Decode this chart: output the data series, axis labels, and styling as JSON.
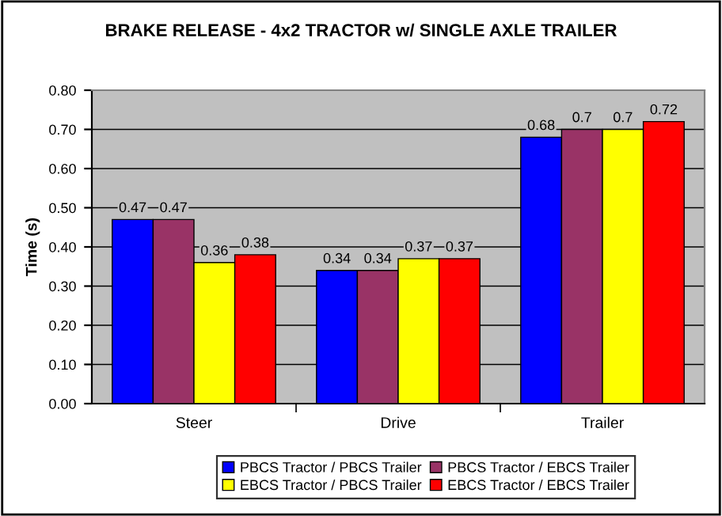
{
  "chart_data": {
    "type": "bar",
    "title": "BRAKE RELEASE - 4x2 TRACTOR w/ SINGLE AXLE TRAILER",
    "ylabel": "Time (s)",
    "categories": [
      "Steer",
      "Drive",
      "Trailer"
    ],
    "series": [
      {
        "name": "PBCS Tractor / PBCS Trailer",
        "color": "#0000ff",
        "values": [
          0.47,
          0.34,
          0.68
        ]
      },
      {
        "name": "PBCS Tractor / EBCS Trailer",
        "color": "#993366",
        "values": [
          0.47,
          0.34,
          0.7
        ]
      },
      {
        "name": "EBCS Tractor / PBCS Trailer",
        "color": "#ffff00",
        "values": [
          0.36,
          0.37,
          0.7
        ]
      },
      {
        "name": "EBCS Tractor / EBCS Trailer",
        "color": "#ff0000",
        "values": [
          0.38,
          0.37,
          0.72
        ]
      }
    ],
    "ylim": [
      0,
      0.8
    ],
    "yticks": [
      {
        "value": 0,
        "label": "0.00"
      },
      {
        "value": 0.1,
        "label": "0.10"
      },
      {
        "value": 0.2,
        "label": "0.20"
      },
      {
        "value": 0.3,
        "label": "0.30"
      },
      {
        "value": 0.4,
        "label": "0.40"
      },
      {
        "value": 0.5,
        "label": "0.50"
      },
      {
        "value": 0.6,
        "label": "0.60"
      },
      {
        "value": 0.7,
        "label": "0.70"
      },
      {
        "value": 0.8,
        "label": "0.80"
      }
    ],
    "grid": "y",
    "legend": "bottom",
    "data_labels": true
  }
}
